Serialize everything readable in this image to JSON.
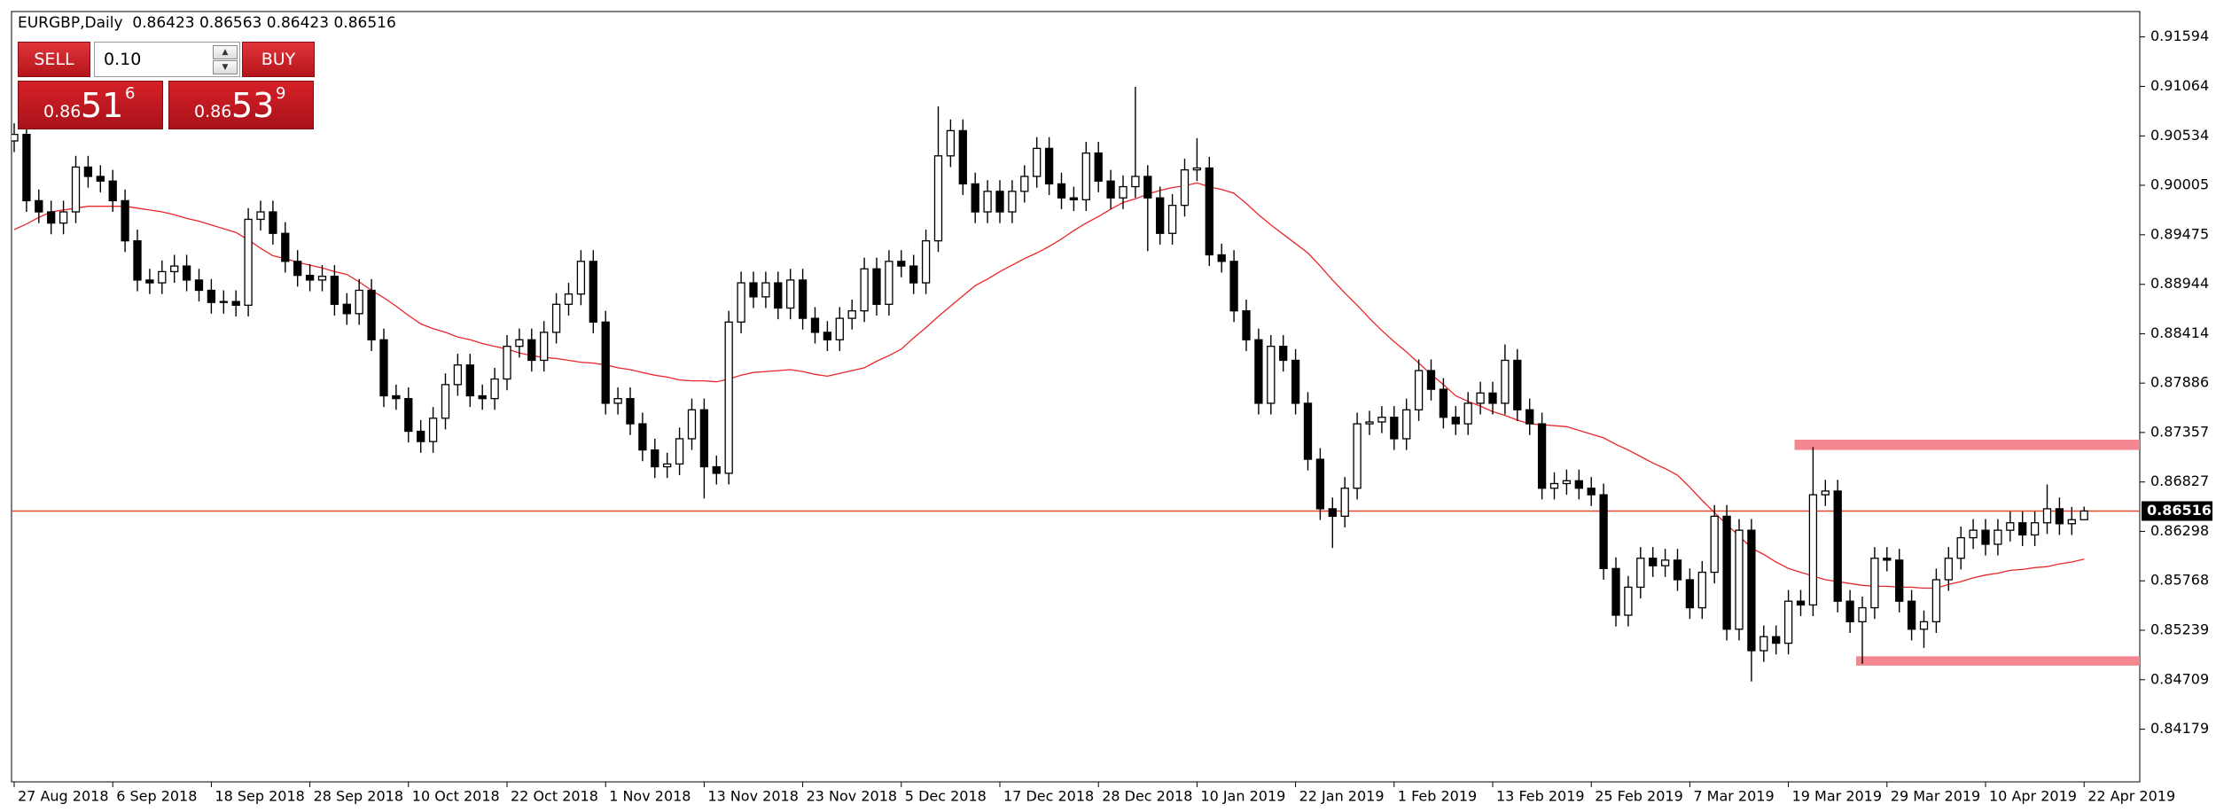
{
  "header": {
    "symbol": "EURGBP,Daily"
  },
  "trade_panel": {
    "sell": "SELL",
    "lot": "0.10",
    "buy": "BUY",
    "bid": {
      "prefix": "0.86",
      "big": "51",
      "fraction": "6"
    },
    "ask": {
      "prefix": "0.86",
      "big": "53",
      "fraction": "9"
    }
  },
  "chart_data": {
    "type": "candlestick",
    "categories": [
      "27 Aug 2018",
      null,
      null,
      null,
      null,
      null,
      null,
      null,
      "6 Sep 2018",
      null,
      null,
      null,
      null,
      null,
      null,
      null,
      "18 Sep 2018",
      null,
      null,
      null,
      null,
      null,
      null,
      null,
      "28 Sep 2018",
      null,
      null,
      null,
      null,
      null,
      null,
      null,
      "10 Oct 2018",
      null,
      null,
      null,
      null,
      null,
      null,
      null,
      "22 Oct 2018",
      null,
      null,
      null,
      null,
      null,
      null,
      null,
      "1 Nov 2018",
      null,
      null,
      null,
      null,
      null,
      null,
      null,
      "13 Nov 2018",
      null,
      null,
      null,
      null,
      null,
      null,
      null,
      "23 Nov 2018",
      null,
      null,
      null,
      null,
      null,
      null,
      null,
      "5 Dec 2018",
      null,
      null,
      null,
      null,
      null,
      null,
      null,
      "17 Dec 2018",
      null,
      null,
      null,
      null,
      null,
      null,
      null,
      "28 Dec 2018",
      null,
      null,
      null,
      null,
      null,
      null,
      null,
      "10 Jan 2019",
      null,
      null,
      null,
      null,
      null,
      null,
      null,
      "22 Jan 2019",
      null,
      null,
      null,
      null,
      null,
      null,
      null,
      "1 Feb 2019",
      null,
      null,
      null,
      null,
      null,
      null,
      null,
      "13 Feb 2019",
      null,
      null,
      null,
      null,
      null,
      null,
      null,
      "25 Feb 2019",
      null,
      null,
      null,
      null,
      null,
      null,
      null,
      "7 Mar 2019",
      null,
      null,
      null,
      null,
      null,
      null,
      null,
      "19 Mar 2019",
      null,
      null,
      null,
      null,
      null,
      null,
      null,
      "29 Mar 2019",
      null,
      null,
      null,
      null,
      null,
      null,
      null,
      "10 Apr 2019",
      null,
      null,
      null,
      null,
      null,
      null,
      null,
      "22 Apr 2019"
    ],
    "open": [
      0.9048,
      0.9055,
      0.8984,
      0.8972,
      0.896,
      0.8972,
      0.902,
      0.901,
      0.9005,
      0.8984,
      0.8941,
      0.8899,
      0.8896,
      0.8908,
      0.8914,
      0.8899,
      0.8888,
      0.8875,
      0.8876,
      0.8872,
      0.8964,
      0.8972,
      0.8949,
      0.8919,
      0.8904,
      0.8899,
      0.8903,
      0.8873,
      0.8863,
      0.8888,
      0.8835,
      0.8775,
      0.8772,
      0.8737,
      0.8726,
      0.8751,
      0.8787,
      0.8808,
      0.8775,
      0.8772,
      0.8793,
      0.8828,
      0.8835,
      0.8813,
      0.8843,
      0.8873,
      0.8884,
      0.8919,
      0.8854,
      0.8767,
      0.8772,
      0.8745,
      0.8717,
      0.8699,
      0.8702,
      0.8729,
      0.876,
      0.8699,
      0.8692,
      0.8854,
      0.8896,
      0.8881,
      0.8896,
      0.8869,
      0.8899,
      0.8858,
      0.8843,
      0.8835,
      0.8858,
      0.8866,
      0.8911,
      0.8873,
      0.8919,
      0.8914,
      0.8896,
      0.8941,
      0.9032,
      0.9059,
      0.9002,
      0.8972,
      0.8994,
      0.8972,
      0.8994,
      0.901,
      0.904,
      0.9002,
      0.8987,
      0.8985,
      0.9035,
      0.9005,
      0.8987,
      0.8999,
      0.901,
      0.8987,
      0.8949,
      0.8979,
      0.9017,
      0.9019,
      0.8926,
      0.8919,
      0.8866,
      0.8835,
      0.8767,
      0.8828,
      0.8813,
      0.8767,
      0.8707,
      0.8654,
      0.8646,
      0.8676,
      0.8745,
      0.8747,
      0.8752,
      0.8729,
      0.876,
      0.8802,
      0.8782,
      0.8752,
      0.8745,
      0.8767,
      0.8778,
      0.8767,
      0.8813,
      0.876,
      0.8745,
      0.8676,
      0.8681,
      0.8684,
      0.8676,
      0.8669,
      0.859,
      0.854,
      0.857,
      0.8601,
      0.8593,
      0.8599,
      0.8578,
      0.8548,
      0.8586,
      0.8646,
      0.8525,
      0.8631,
      0.8502,
      0.8517,
      0.851,
      0.8555,
      0.8551,
      0.8669,
      0.8673,
      0.8555,
      0.8533,
      0.8548,
      0.8601,
      0.8599,
      0.8555,
      0.8525,
      0.8533,
      0.8578,
      0.8601,
      0.8623,
      0.8631,
      0.8616,
      0.8631,
      0.8639,
      0.8626,
      0.8639,
      0.8654,
      0.8638,
      0.86423
    ],
    "high": [
      0.9067,
      0.9067,
      0.8996,
      0.8984,
      0.8984,
      0.9032,
      0.9032,
      0.9022,
      0.9017,
      0.8996,
      0.8953,
      0.8911,
      0.892,
      0.8926,
      0.8926,
      0.8911,
      0.89,
      0.8888,
      0.8888,
      0.8976,
      0.8984,
      0.8984,
      0.8961,
      0.8931,
      0.8916,
      0.8915,
      0.8915,
      0.8885,
      0.89,
      0.89,
      0.8847,
      0.8787,
      0.8784,
      0.8749,
      0.8763,
      0.8799,
      0.882,
      0.882,
      0.8787,
      0.8805,
      0.884,
      0.8847,
      0.8847,
      0.8855,
      0.8885,
      0.8896,
      0.8931,
      0.8931,
      0.8866,
      0.8784,
      0.8784,
      0.8757,
      0.8729,
      0.8714,
      0.8741,
      0.8772,
      0.8772,
      0.8711,
      0.8866,
      0.8908,
      0.8908,
      0.8908,
      0.8908,
      0.8911,
      0.8911,
      0.887,
      0.8855,
      0.887,
      0.8878,
      0.8923,
      0.8923,
      0.8931,
      0.8931,
      0.8926,
      0.8953,
      0.9085,
      0.9071,
      0.9071,
      0.9014,
      0.9006,
      0.9006,
      0.9006,
      0.9022,
      0.9052,
      0.9052,
      0.9014,
      0.8999,
      0.9047,
      0.9047,
      0.9017,
      0.9011,
      0.9106,
      0.9022,
      0.8999,
      0.8991,
      0.9029,
      0.9051,
      0.9031,
      0.8938,
      0.8931,
      0.8878,
      0.8847,
      0.884,
      0.884,
      0.8825,
      0.8779,
      0.8719,
      0.8666,
      0.8688,
      0.8757,
      0.8759,
      0.8764,
      0.8764,
      0.8772,
      0.8814,
      0.8814,
      0.8794,
      0.8764,
      0.8779,
      0.879,
      0.879,
      0.883,
      0.8825,
      0.8772,
      0.8757,
      0.8693,
      0.8696,
      0.8696,
      0.8688,
      0.8681,
      0.8602,
      0.8582,
      0.8613,
      0.8613,
      0.8611,
      0.8611,
      0.859,
      0.8598,
      0.8658,
      0.8658,
      0.8643,
      0.8643,
      0.8529,
      0.8529,
      0.8567,
      0.8567,
      0.872,
      0.8685,
      0.8685,
      0.8567,
      0.856,
      0.8613,
      0.8613,
      0.8611,
      0.8567,
      0.8545,
      0.859,
      0.8613,
      0.8635,
      0.8643,
      0.8643,
      0.8643,
      0.8651,
      0.8651,
      0.8651,
      0.868,
      0.8666,
      0.8656,
      0.86563
    ],
    "low": [
      0.9036,
      0.8972,
      0.896,
      0.8948,
      0.8948,
      0.896,
      0.8998,
      0.8993,
      0.8972,
      0.8929,
      0.8887,
      0.8884,
      0.8884,
      0.8896,
      0.8887,
      0.8876,
      0.8863,
      0.8863,
      0.886,
      0.886,
      0.8952,
      0.8937,
      0.8907,
      0.8892,
      0.8887,
      0.8887,
      0.8861,
      0.8851,
      0.8851,
      0.8823,
      0.8763,
      0.876,
      0.8725,
      0.8714,
      0.8714,
      0.8739,
      0.8775,
      0.8763,
      0.876,
      0.876,
      0.8781,
      0.8816,
      0.8801,
      0.8801,
      0.8831,
      0.8861,
      0.8872,
      0.8842,
      0.8755,
      0.8755,
      0.8733,
      0.8705,
      0.8687,
      0.8687,
      0.869,
      0.8717,
      0.8665,
      0.868,
      0.868,
      0.8842,
      0.8869,
      0.8869,
      0.8857,
      0.8857,
      0.8846,
      0.8831,
      0.8823,
      0.8823,
      0.8846,
      0.8854,
      0.8861,
      0.8861,
      0.8902,
      0.8884,
      0.8884,
      0.8929,
      0.902,
      0.899,
      0.896,
      0.896,
      0.896,
      0.896,
      0.8982,
      0.8998,
      0.899,
      0.8975,
      0.8973,
      0.8973,
      0.8993,
      0.8975,
      0.8975,
      0.8987,
      0.893,
      0.8937,
      0.8937,
      0.8967,
      0.9005,
      0.8914,
      0.8907,
      0.8854,
      0.8823,
      0.8755,
      0.8755,
      0.8801,
      0.8755,
      0.8695,
      0.8642,
      0.8612,
      0.8634,
      0.8664,
      0.8733,
      0.8735,
      0.8717,
      0.8717,
      0.8748,
      0.877,
      0.874,
      0.8733,
      0.8733,
      0.8755,
      0.8755,
      0.8755,
      0.8748,
      0.8733,
      0.8664,
      0.8664,
      0.8669,
      0.8664,
      0.8657,
      0.8578,
      0.8528,
      0.8528,
      0.8558,
      0.8581,
      0.8581,
      0.8566,
      0.8536,
      0.8536,
      0.8574,
      0.8513,
      0.8513,
      0.8469,
      0.849,
      0.8498,
      0.8498,
      0.8539,
      0.8539,
      0.8657,
      0.8543,
      0.8521,
      0.8488,
      0.8536,
      0.8587,
      0.8543,
      0.8513,
      0.8505,
      0.8521,
      0.8566,
      0.8589,
      0.8611,
      0.8604,
      0.8604,
      0.8619,
      0.8614,
      0.8614,
      0.8627,
      0.8626,
      0.8626,
      0.86423
    ],
    "close": [
      0.9055,
      0.8984,
      0.8972,
      0.896,
      0.8972,
      0.902,
      0.901,
      0.9005,
      0.8984,
      0.8941,
      0.8899,
      0.8896,
      0.8908,
      0.8914,
      0.8899,
      0.8888,
      0.8875,
      0.8876,
      0.8872,
      0.8964,
      0.8972,
      0.8949,
      0.8919,
      0.8904,
      0.8899,
      0.8903,
      0.8873,
      0.8863,
      0.8888,
      0.8835,
      0.8775,
      0.8772,
      0.8737,
      0.8726,
      0.8751,
      0.8787,
      0.8808,
      0.8775,
      0.8772,
      0.8793,
      0.8828,
      0.8835,
      0.8813,
      0.8843,
      0.8873,
      0.8884,
      0.8919,
      0.8854,
      0.8767,
      0.8772,
      0.8745,
      0.8717,
      0.8699,
      0.8702,
      0.8729,
      0.876,
      0.8699,
      0.8692,
      0.8854,
      0.8896,
      0.8881,
      0.8896,
      0.8869,
      0.8899,
      0.8858,
      0.8843,
      0.8835,
      0.8858,
      0.8866,
      0.8911,
      0.8873,
      0.8919,
      0.8914,
      0.8896,
      0.8941,
      0.9032,
      0.9059,
      0.9002,
      0.8972,
      0.8994,
      0.8972,
      0.8994,
      0.901,
      0.904,
      0.9002,
      0.8987,
      0.8985,
      0.9035,
      0.9005,
      0.8987,
      0.8999,
      0.901,
      0.8987,
      0.8949,
      0.8979,
      0.9017,
      0.9019,
      0.8926,
      0.8919,
      0.8866,
      0.8835,
      0.8767,
      0.8828,
      0.8813,
      0.8767,
      0.8707,
      0.8654,
      0.8646,
      0.8676,
      0.8745,
      0.8747,
      0.8752,
      0.8729,
      0.876,
      0.8802,
      0.8782,
      0.8752,
      0.8745,
      0.8767,
      0.8778,
      0.8767,
      0.8813,
      0.876,
      0.8745,
      0.8676,
      0.8681,
      0.8684,
      0.8676,
      0.8669,
      0.859,
      0.854,
      0.857,
      0.8601,
      0.8593,
      0.8599,
      0.8578,
      0.8548,
      0.8586,
      0.8646,
      0.8525,
      0.8631,
      0.8502,
      0.8517,
      0.851,
      0.8555,
      0.8551,
      0.8669,
      0.8673,
      0.8555,
      0.8533,
      0.8548,
      0.8601,
      0.8599,
      0.8555,
      0.8525,
      0.8533,
      0.8578,
      0.8601,
      0.8623,
      0.8631,
      0.8616,
      0.8631,
      0.8639,
      0.8626,
      0.8639,
      0.8654,
      0.8638,
      0.86423,
      0.86516
    ],
    "ma": {
      "color": "#e8262c",
      "values": [
        0.8953,
        0.8959,
        0.8966,
        0.8972,
        0.8974,
        0.8976,
        0.8978,
        0.8978,
        0.8978,
        0.8978,
        0.8976,
        0.8974,
        0.8972,
        0.8969,
        0.8965,
        0.8962,
        0.8958,
        0.8954,
        0.895,
        0.8942,
        0.8933,
        0.8925,
        0.8922,
        0.8918,
        0.8915,
        0.8912,
        0.8908,
        0.8905,
        0.8897,
        0.8888,
        0.888,
        0.8871,
        0.8861,
        0.8852,
        0.8847,
        0.8843,
        0.8838,
        0.8835,
        0.8831,
        0.8828,
        0.8825,
        0.8821,
        0.8818,
        0.8816,
        0.8815,
        0.8813,
        0.8811,
        0.881,
        0.8808,
        0.8805,
        0.8803,
        0.88,
        0.8797,
        0.8795,
        0.8792,
        0.8791,
        0.8791,
        0.879,
        0.8793,
        0.8797,
        0.88,
        0.8801,
        0.8802,
        0.8803,
        0.8801,
        0.8798,
        0.8796,
        0.8799,
        0.8802,
        0.8805,
        0.8812,
        0.8818,
        0.8825,
        0.8837,
        0.8848,
        0.886,
        0.8871,
        0.8882,
        0.8893,
        0.89,
        0.8908,
        0.8915,
        0.8922,
        0.8928,
        0.8935,
        0.8943,
        0.8952,
        0.896,
        0.8967,
        0.8975,
        0.8982,
        0.8986,
        0.8991,
        0.8995,
        0.8998,
        0.9,
        0.9003,
        0.8999,
        0.8996,
        0.8992,
        0.8981,
        0.8969,
        0.8958,
        0.8948,
        0.8938,
        0.8928,
        0.8914,
        0.8899,
        0.8885,
        0.8872,
        0.8858,
        0.8845,
        0.8833,
        0.8822,
        0.881,
        0.8798,
        0.8787,
        0.8775,
        0.8769,
        0.8764,
        0.8758,
        0.8754,
        0.8749,
        0.8745,
        0.8744,
        0.8743,
        0.8742,
        0.8738,
        0.8734,
        0.873,
        0.8723,
        0.8717,
        0.871,
        0.8703,
        0.8697,
        0.869,
        0.8677,
        0.8663,
        0.865,
        0.8637,
        0.8625,
        0.8612,
        0.8605,
        0.8597,
        0.859,
        0.8586,
        0.8582,
        0.8578,
        0.8576,
        0.8574,
        0.8572,
        0.8571,
        0.8571,
        0.857,
        0.857,
        0.8569,
        0.8569,
        0.8573,
        0.8576,
        0.858,
        0.8583,
        0.8585,
        0.8588,
        0.8589,
        0.8591,
        0.8592,
        0.8595,
        0.8597,
        0.86
      ]
    },
    "zones": [
      {
        "low": 0.8717,
        "high": 0.8728,
        "start": 145
      },
      {
        "low": 0.8486,
        "high": 0.8496,
        "start": 150
      }
    ],
    "zone_color": "#f4868f",
    "price_line_color": "#e5492c",
    "up_color": "#ffffff",
    "down_color": "#000000",
    "ylim": [
      0.83615,
      0.91866
    ],
    "yticks": [
      0.91594,
      0.91064,
      0.90534,
      0.90005,
      0.89475,
      0.88944,
      0.88414,
      0.87886,
      0.87357,
      0.86827,
      0.86298,
      0.85768,
      0.85239,
      0.84709,
      0.84179
    ]
  }
}
